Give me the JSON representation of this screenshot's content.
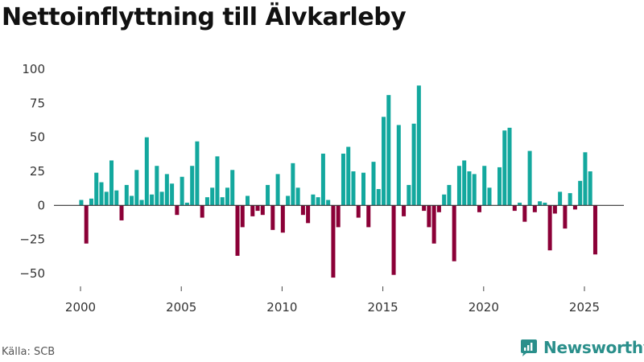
{
  "header": {
    "title": "Nettoinflyttning till Älvkarleby"
  },
  "footer": {
    "source": "Källa: SCB",
    "brand": "Newsworthy"
  },
  "colors": {
    "positive": "#13a89e",
    "negative": "#8b0037",
    "zero_line": "#333333",
    "brand": "#2a8f8b"
  },
  "chart_data": {
    "type": "bar",
    "title": "Nettoinflyttning till Älvkarleby",
    "xlabel": "",
    "ylabel": "",
    "ylim": [
      -55,
      100
    ],
    "xlim": [
      1999,
      2027.5
    ],
    "yticks": [
      100,
      75,
      50,
      25,
      0,
      -25,
      -50
    ],
    "ytick_labels": [
      "100",
      "75",
      "50",
      "25",
      "0",
      "−25",
      "−50"
    ],
    "xticks": [
      2000,
      2005,
      2010,
      2015,
      2020,
      2025
    ],
    "xtick_labels": [
      "2000",
      "2005",
      "2010",
      "2015",
      "2020",
      "2025"
    ],
    "grid": false,
    "frequency": "monthly-ish (4 per year)",
    "start_year": 2000,
    "values": [
      4,
      -28,
      5,
      24,
      17,
      10,
      33,
      11,
      -11,
      15,
      7,
      26,
      4,
      50,
      8,
      29,
      10,
      23,
      16,
      -7,
      21,
      2,
      29,
      47,
      -9,
      6,
      13,
      36,
      6,
      13,
      26,
      -37,
      -16,
      7,
      -8,
      -4,
      -7,
      15,
      -18,
      23,
      -20,
      7,
      31,
      13,
      -7,
      -13,
      8,
      6,
      38,
      4,
      -53,
      -16,
      38,
      43,
      25,
      -9,
      24,
      -16,
      32,
      12,
      65,
      81,
      -51,
      59,
      -8,
      15,
      60,
      88,
      -4,
      -16,
      -28,
      -5,
      8,
      15,
      -41,
      29,
      33,
      25,
      23,
      -5,
      29,
      13,
      0,
      28,
      55,
      57,
      -4,
      2,
      -12,
      40,
      -5,
      3,
      2,
      -33,
      -6,
      10,
      -17,
      9,
      -3,
      18,
      39,
      25,
      -36
    ]
  }
}
